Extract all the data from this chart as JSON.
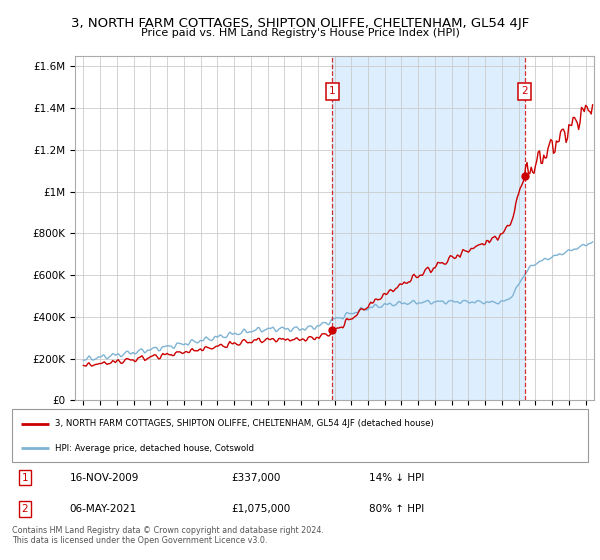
{
  "title": "3, NORTH FARM COTTAGES, SHIPTON OLIFFE, CHELTENHAM, GL54 4JF",
  "subtitle": "Price paid vs. HM Land Registry's House Price Index (HPI)",
  "legend_line1": "3, NORTH FARM COTTAGES, SHIPTON OLIFFE, CHELTENHAM, GL54 4JF (detached house)",
  "legend_line2": "HPI: Average price, detached house, Cotswold",
  "footer1": "Contains HM Land Registry data © Crown copyright and database right 2024.",
  "footer2": "This data is licensed under the Open Government Licence v3.0.",
  "sale1_date": "16-NOV-2009",
  "sale1_price": 337000,
  "sale1_label": "14% ↓ HPI",
  "sale2_date": "06-MAY-2021",
  "sale2_price": 1075000,
  "sale2_label": "80% ↑ HPI",
  "sale1_year": 2009.88,
  "sale2_year": 2021.35,
  "ylim": [
    0,
    1650000
  ],
  "xlim_start": 1994.5,
  "xlim_end": 2025.5,
  "red_color": "#cc0000",
  "blue_color": "#7fb3d3",
  "bg_color": "#ffffff",
  "shade_color": "#ddeeff",
  "grid_color": "#cccccc"
}
